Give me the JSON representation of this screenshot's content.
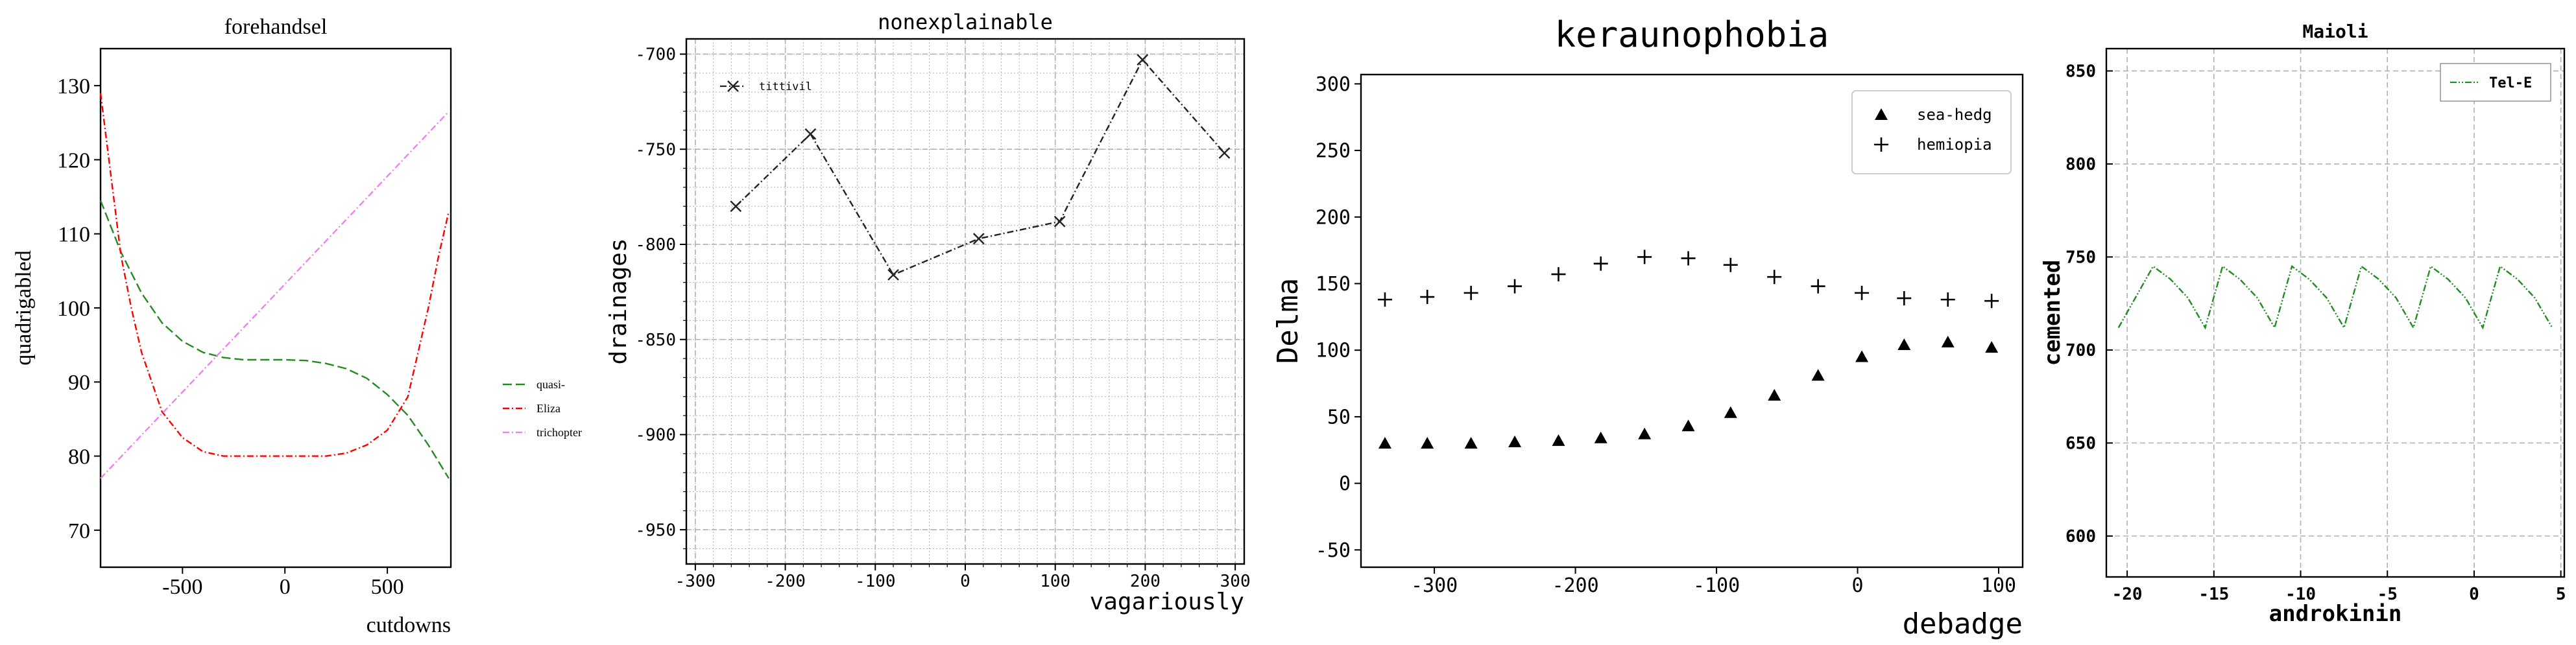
{
  "chart_data": [
    {
      "type": "line",
      "title": "forehandsel",
      "xlabel": "cutdowns",
      "ylabel": "quadrigabled",
      "xlim": [
        -900,
        810
      ],
      "ylim": [
        65,
        135
      ],
      "xticks": [
        -500,
        0,
        500
      ],
      "yticks": [
        70,
        80,
        90,
        100,
        110,
        120,
        130
      ],
      "grid": false,
      "legend_position": "outside right",
      "series": [
        {
          "name": "quasi-",
          "color": "#228b22",
          "dash": "dashed",
          "x": [
            -900,
            -800,
            -700,
            -600,
            -500,
            -400,
            -300,
            -200,
            -100,
            0,
            100,
            200,
            300,
            400,
            500,
            600,
            700,
            800
          ],
          "y": [
            114.5,
            107.5,
            102,
            98,
            95.5,
            94,
            93.3,
            93,
            93,
            93,
            92.9,
            92.5,
            91.8,
            90.5,
            88.3,
            85.5,
            81.5,
            77
          ]
        },
        {
          "name": "Eliza",
          "color": "#ff0000",
          "dash": "dashdot",
          "x": [
            -900,
            -850,
            -800,
            -750,
            -700,
            -600,
            -500,
            -400,
            -300,
            -200,
            -100,
            0,
            100,
            200,
            300,
            400,
            500,
            600,
            700,
            750,
            800
          ],
          "y": [
            129,
            118,
            107,
            100,
            94,
            86,
            82.5,
            80.6,
            80,
            80,
            80,
            80,
            80,
            80,
            80.4,
            81.5,
            83.5,
            88,
            100,
            107,
            113
          ]
        },
        {
          "name": "trichopter",
          "color": "#ee82ee",
          "dash": "dashdot",
          "x": [
            -900,
            800
          ],
          "y": [
            77,
            126.5
          ]
        }
      ]
    },
    {
      "type": "line",
      "title": "nonexplainable",
      "xlabel": "vagariously",
      "ylabel": "drainages",
      "xlim": [
        -310,
        310
      ],
      "ylim": [
        -968,
        -692
      ],
      "xticks": [
        -300,
        -200,
        -100,
        0,
        100,
        200,
        300
      ],
      "yticks": [
        -950,
        -900,
        -850,
        -800,
        -750,
        -700
      ],
      "grid": true,
      "legend_position": "upper left",
      "series": [
        {
          "name": "tittivil",
          "color": "#222222",
          "dash": "dashdot",
          "marker": "x",
          "x": [
            -255,
            -172,
            -80,
            15,
            105,
            197,
            288
          ],
          "y": [
            -780,
            -742,
            -816,
            -797,
            -788,
            -703,
            -752
          ]
        }
      ]
    },
    {
      "type": "scatter",
      "title": "keraunophobia",
      "xlabel": "debadge",
      "ylabel": "Delma",
      "xlim": [
        -352,
        117
      ],
      "ylim": [
        -63,
        307
      ],
      "xticks": [
        -300,
        -200,
        -100,
        0,
        100
      ],
      "yticks": [
        -50,
        0,
        50,
        100,
        150,
        200,
        250,
        300
      ],
      "grid": false,
      "legend_position": "upper right",
      "series": [
        {
          "name": "sea-hedg",
          "color": "#000000",
          "marker": "triangle",
          "x": [
            -335,
            -305,
            -274,
            -243,
            -212,
            -182,
            -151,
            -120,
            -90,
            -59,
            -28,
            3,
            33,
            64,
            95
          ],
          "y": [
            30,
            30,
            30,
            31,
            32,
            34,
            37,
            43,
            53,
            66,
            81,
            95,
            104,
            106,
            102
          ]
        },
        {
          "name": "hemiopia",
          "color": "#000000",
          "marker": "plus",
          "x": [
            -335,
            -305,
            -274,
            -243,
            -212,
            -182,
            -151,
            -120,
            -90,
            -59,
            -28,
            3,
            33,
            64,
            95
          ],
          "y": [
            138,
            140,
            143,
            148,
            157,
            165,
            170,
            169,
            164,
            155,
            148,
            143,
            139,
            138,
            137
          ]
        }
      ]
    },
    {
      "type": "line",
      "title": "Maioli",
      "xlabel": "androkinin",
      "ylabel": "cemented",
      "xlim": [
        -21.2,
        5.2
      ],
      "ylim": [
        578,
        862
      ],
      "xticks": [
        -20,
        -15,
        -10,
        -5,
        0,
        5
      ],
      "yticks": [
        600,
        650,
        700,
        750,
        800,
        850
      ],
      "grid": true,
      "legend_position": "upper right",
      "series": [
        {
          "name": "Tel-E",
          "color": "#228b22",
          "dash": "dashdotdot",
          "x": [
            -20.5,
            -18.5,
            -17.5,
            -16.5,
            -15.5,
            -14.5,
            -13.5,
            -12.5,
            -11.5,
            -10.5,
            -9.5,
            -8.5,
            -7.5,
            -6.5,
            -5.5,
            -4.5,
            -3.5,
            -2.5,
            -1.5,
            -0.5,
            0.5,
            1.5,
            2.5,
            3.5,
            4.5
          ],
          "y": [
            712,
            745,
            738,
            728,
            712,
            745,
            738,
            728,
            712,
            745,
            738,
            728,
            712,
            745,
            738,
            728,
            712,
            745,
            738,
            728,
            712,
            745,
            738,
            728,
            712
          ]
        }
      ]
    }
  ]
}
